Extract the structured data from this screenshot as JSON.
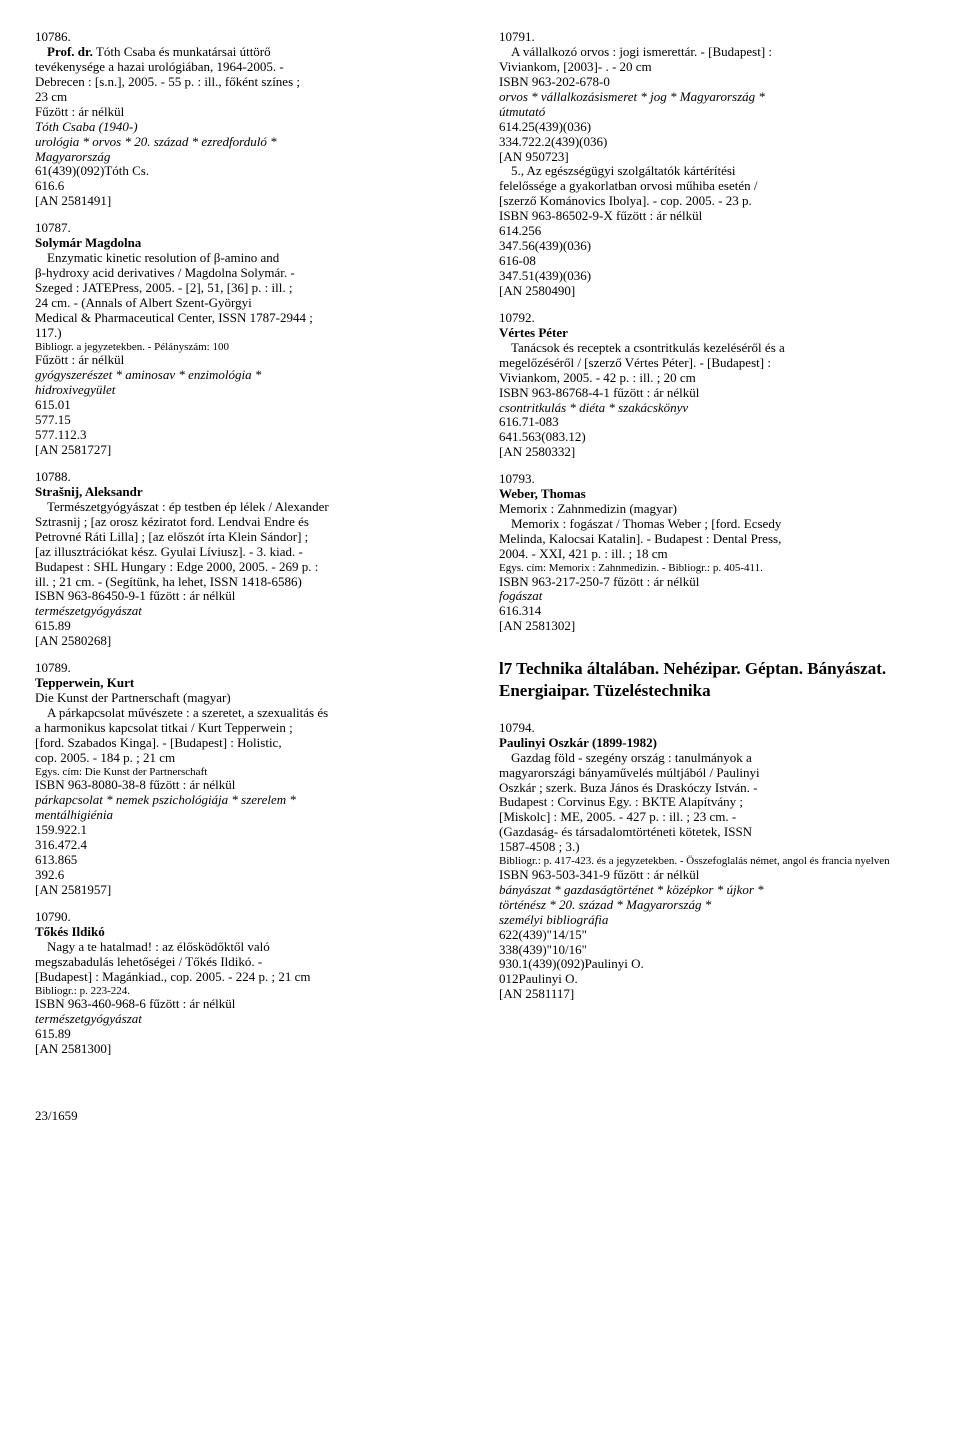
{
  "left": {
    "e1": {
      "num": "10786.",
      "aut": "Prof. dr.",
      "aut2": "Tóth Csaba és munkatársai úttörő",
      "l1": "tevékenysége a hazai urológiában, 1964-2005. -",
      "l2": "Debrecen : [s.n.], 2005. - 55 p. : ill., főként színes ;",
      "l3": "23 cm",
      "l4": "Fűzött : ár nélkül",
      "l5": "Tóth Csaba (1940-)",
      "l6": "urológia * orvos * 20. század * ezredforduló *",
      "l7": "Magyarország",
      "l8": "61(439)(092)Tóth Cs.",
      "l9": "616.6",
      "l10": "[AN 2581491]"
    },
    "e2": {
      "num": "10787.",
      "aut": "Solymár Magdolna",
      "l1": "Enzymatic kinetic resolution of β-amino and",
      "l2": "β-hydroxy acid derivatives / Magdolna Solymár. -",
      "l3": "Szeged : JATEPress, 2005. - [2], 51, [36] p. : ill. ;",
      "l4": "24 cm. - (Annals of Albert Szent-Györgyi",
      "l5": "Medical & Pharmaceutical Center, ISSN 1787-2944 ;",
      "l6": "117.)",
      "l7s": "Bibliogr. a jegyzetekben. - Pélányszám: 100",
      "l8": "Fűzött : ár nélkül",
      "l9": "gyógyszerészet * aminosav * enzimológia *",
      "l10": "hidroxivegyület",
      "l11": "615.01",
      "l12": "577.15",
      "l13": "577.112.3",
      "l14": "[AN 2581727]"
    },
    "e3": {
      "num": "10788.",
      "aut": "Strašnij, Aleksandr",
      "l1": "Természetgyógyászat : ép testben ép lélek / Alexander",
      "l2": "Sztrasnij ; [az orosz kéziratot ford. Lendvai Endre és",
      "l3": "Petrovné Ráti Lilla] ; [az előszót írta Klein Sándor] ;",
      "l4": "[az illusztrációkat kész. Gyulai Líviusz]. - 3. kiad. -",
      "l5": "Budapest : SHL Hungary : Edge 2000, 2005. - 269 p. :",
      "l6": "ill. ; 21 cm. - (Segítünk, ha lehet, ISSN 1418-6586)",
      "l7": "ISBN 963-86450-9-1 fűzött : ár nélkül",
      "l8": "természetgyógyászat",
      "l9": "615.89",
      "l10": "[AN 2580268]"
    },
    "e4": {
      "num": "10789.",
      "aut": "Tepperwein, Kurt",
      "l1": "Die Kunst der Partnerschaft (magyar)",
      "l2": "A párkapcsolat művészete : a szeretet, a szexualitás és",
      "l3": "a harmonikus kapcsolat titkai / Kurt Tepperwein ;",
      "l4": "[ford. Szabados Kinga]. - [Budapest] : Holistic,",
      "l5": "cop. 2005. - 184 p. ; 21 cm",
      "l6s": "Egys. cím: Die Kunst der Partnerschaft",
      "l7": "ISBN 963-8080-38-8 fűzött : ár nélkül",
      "l8": "párkapcsolat * nemek pszichológiája * szerelem *",
      "l9": "mentálhigiénia",
      "l10": "159.922.1",
      "l11": "316.472.4",
      "l12": "613.865",
      "l13": "392.6",
      "l14": "[AN 2581957]"
    },
    "e5": {
      "num": "10790.",
      "aut": "Tőkés Ildikó",
      "l1": "Nagy a te hatalmad! : az élősködőktől való",
      "l2": "megszabadulás lehetőségei / Tőkés Ildikó. -",
      "l3": "[Budapest] : Magánkiad., cop. 2005. - 224 p. ; 21 cm",
      "l4s": "Bibliogr.: p. 223-224.",
      "l5": "ISBN 963-460-968-6 fűzött : ár nélkül",
      "l6": "természetgyógyászat",
      "l7": "615.89",
      "l8": "[AN 2581300]"
    }
  },
  "right": {
    "e1": {
      "num": "10791.",
      "l1a": "A vállalkozó orvos : jogi ismerettár. - [Budapest] :",
      "l2": "Viviankom, [2003]- . - 20 cm",
      "l3": "ISBN 963-202-678-0",
      "l4": "orvos * vállalkozásismeret * jog * Magyarország *",
      "l5": "útmutató",
      "l6": "614.25(439)(036)",
      "l7": "334.722.2(439)(036)",
      "l8": "[AN 950723]",
      "l9": "5., Az egészségügyi szolgáltatók kártérítési",
      "l10": "felelőssége a gyakorlatban orvosi műhiba esetén /",
      "l11": "[szerző Kománovics Ibolya]. - cop. 2005. - 23 p.",
      "l12": "ISBN 963-86502-9-X fűzött : ár nélkül",
      "l13": "614.256",
      "l14": "347.56(439)(036)",
      "l15": "616-08",
      "l16": "347.51(439)(036)",
      "l17": "[AN 2580490]"
    },
    "e2": {
      "num": "10792.",
      "aut": "Vértes Péter",
      "l1": "Tanácsok és receptek a csontritkulás kezeléséről és a",
      "l2": "megelőzéséről / [szerző Vértes Péter]. - [Budapest] :",
      "l3": "Viviankom, 2005. - 42 p. : ill. ; 20 cm",
      "l4": "ISBN 963-86768-4-1 fűzött : ár nélkül",
      "l5": "csontritkulás * diéta * szakácskönyv",
      "l6": "616.71-083",
      "l7": "641.563(083.12)",
      "l8": "[AN 2580332]"
    },
    "e3": {
      "num": "10793.",
      "aut": "Weber, Thomas",
      "l1": "Memorix : Zahnmedizin (magyar)",
      "l2": "Memorix : fogászat / Thomas Weber ; [ford. Ecsedy",
      "l3": "Melinda, Kalocsai Katalin]. - Budapest : Dental Press,",
      "l4": "2004. - XXI, 421 p. : ill. ; 18 cm",
      "l5s": "Egys. cím: Memorix : Zahnmedizin. - Bibliogr.: p. 405-411.",
      "l6": "ISBN 963-217-250-7 fűzött : ár nélkül",
      "l7": "fogászat",
      "l8": "616.314",
      "l9": "[AN 2581302]"
    },
    "heading": "l7 Technika általában. Nehézipar. Géptan. Bányászat. Energiaipar. Tüzeléstechnika",
    "e4": {
      "num": "10794.",
      "aut": "Paulinyi Oszkár (1899-1982)",
      "l1": "Gazdag föld - szegény ország : tanulmányok a",
      "l2": "magyarországi bányaművelés múltjából / Paulinyi",
      "l3": "Oszkár ; szerk. Buza János és Draskóczy István. -",
      "l4": "Budapest : Corvinus Egy. : BKTE Alapítvány ;",
      "l5": "[Miskolc] : ME, 2005. - 427 p. : ill. ; 23 cm. -",
      "l6": "(Gazdaság- és társadalomtörténeti kötetek, ISSN",
      "l7": "1587-4508 ; 3.)",
      "l8s": "Bibliogr.: p. 417-423. és a jegyzetekben. - Összefoglalás német, angol és francia nyelven",
      "l9": "ISBN 963-503-341-9 fűzött : ár nélkül",
      "l10": "bányászat * gazdaságtörténet * középkor * újkor *",
      "l11": "történész * 20. század * Magyarország *",
      "l12": "személyi bibliográfia",
      "l13": "622(439)\"14/15\"",
      "l14": "338(439)\"10/16\"",
      "l15": "930.1(439)(092)Paulinyi O.",
      "l16": "012Paulinyi O.",
      "l17": "[AN 2581117]"
    }
  },
  "footer": "23/1659"
}
